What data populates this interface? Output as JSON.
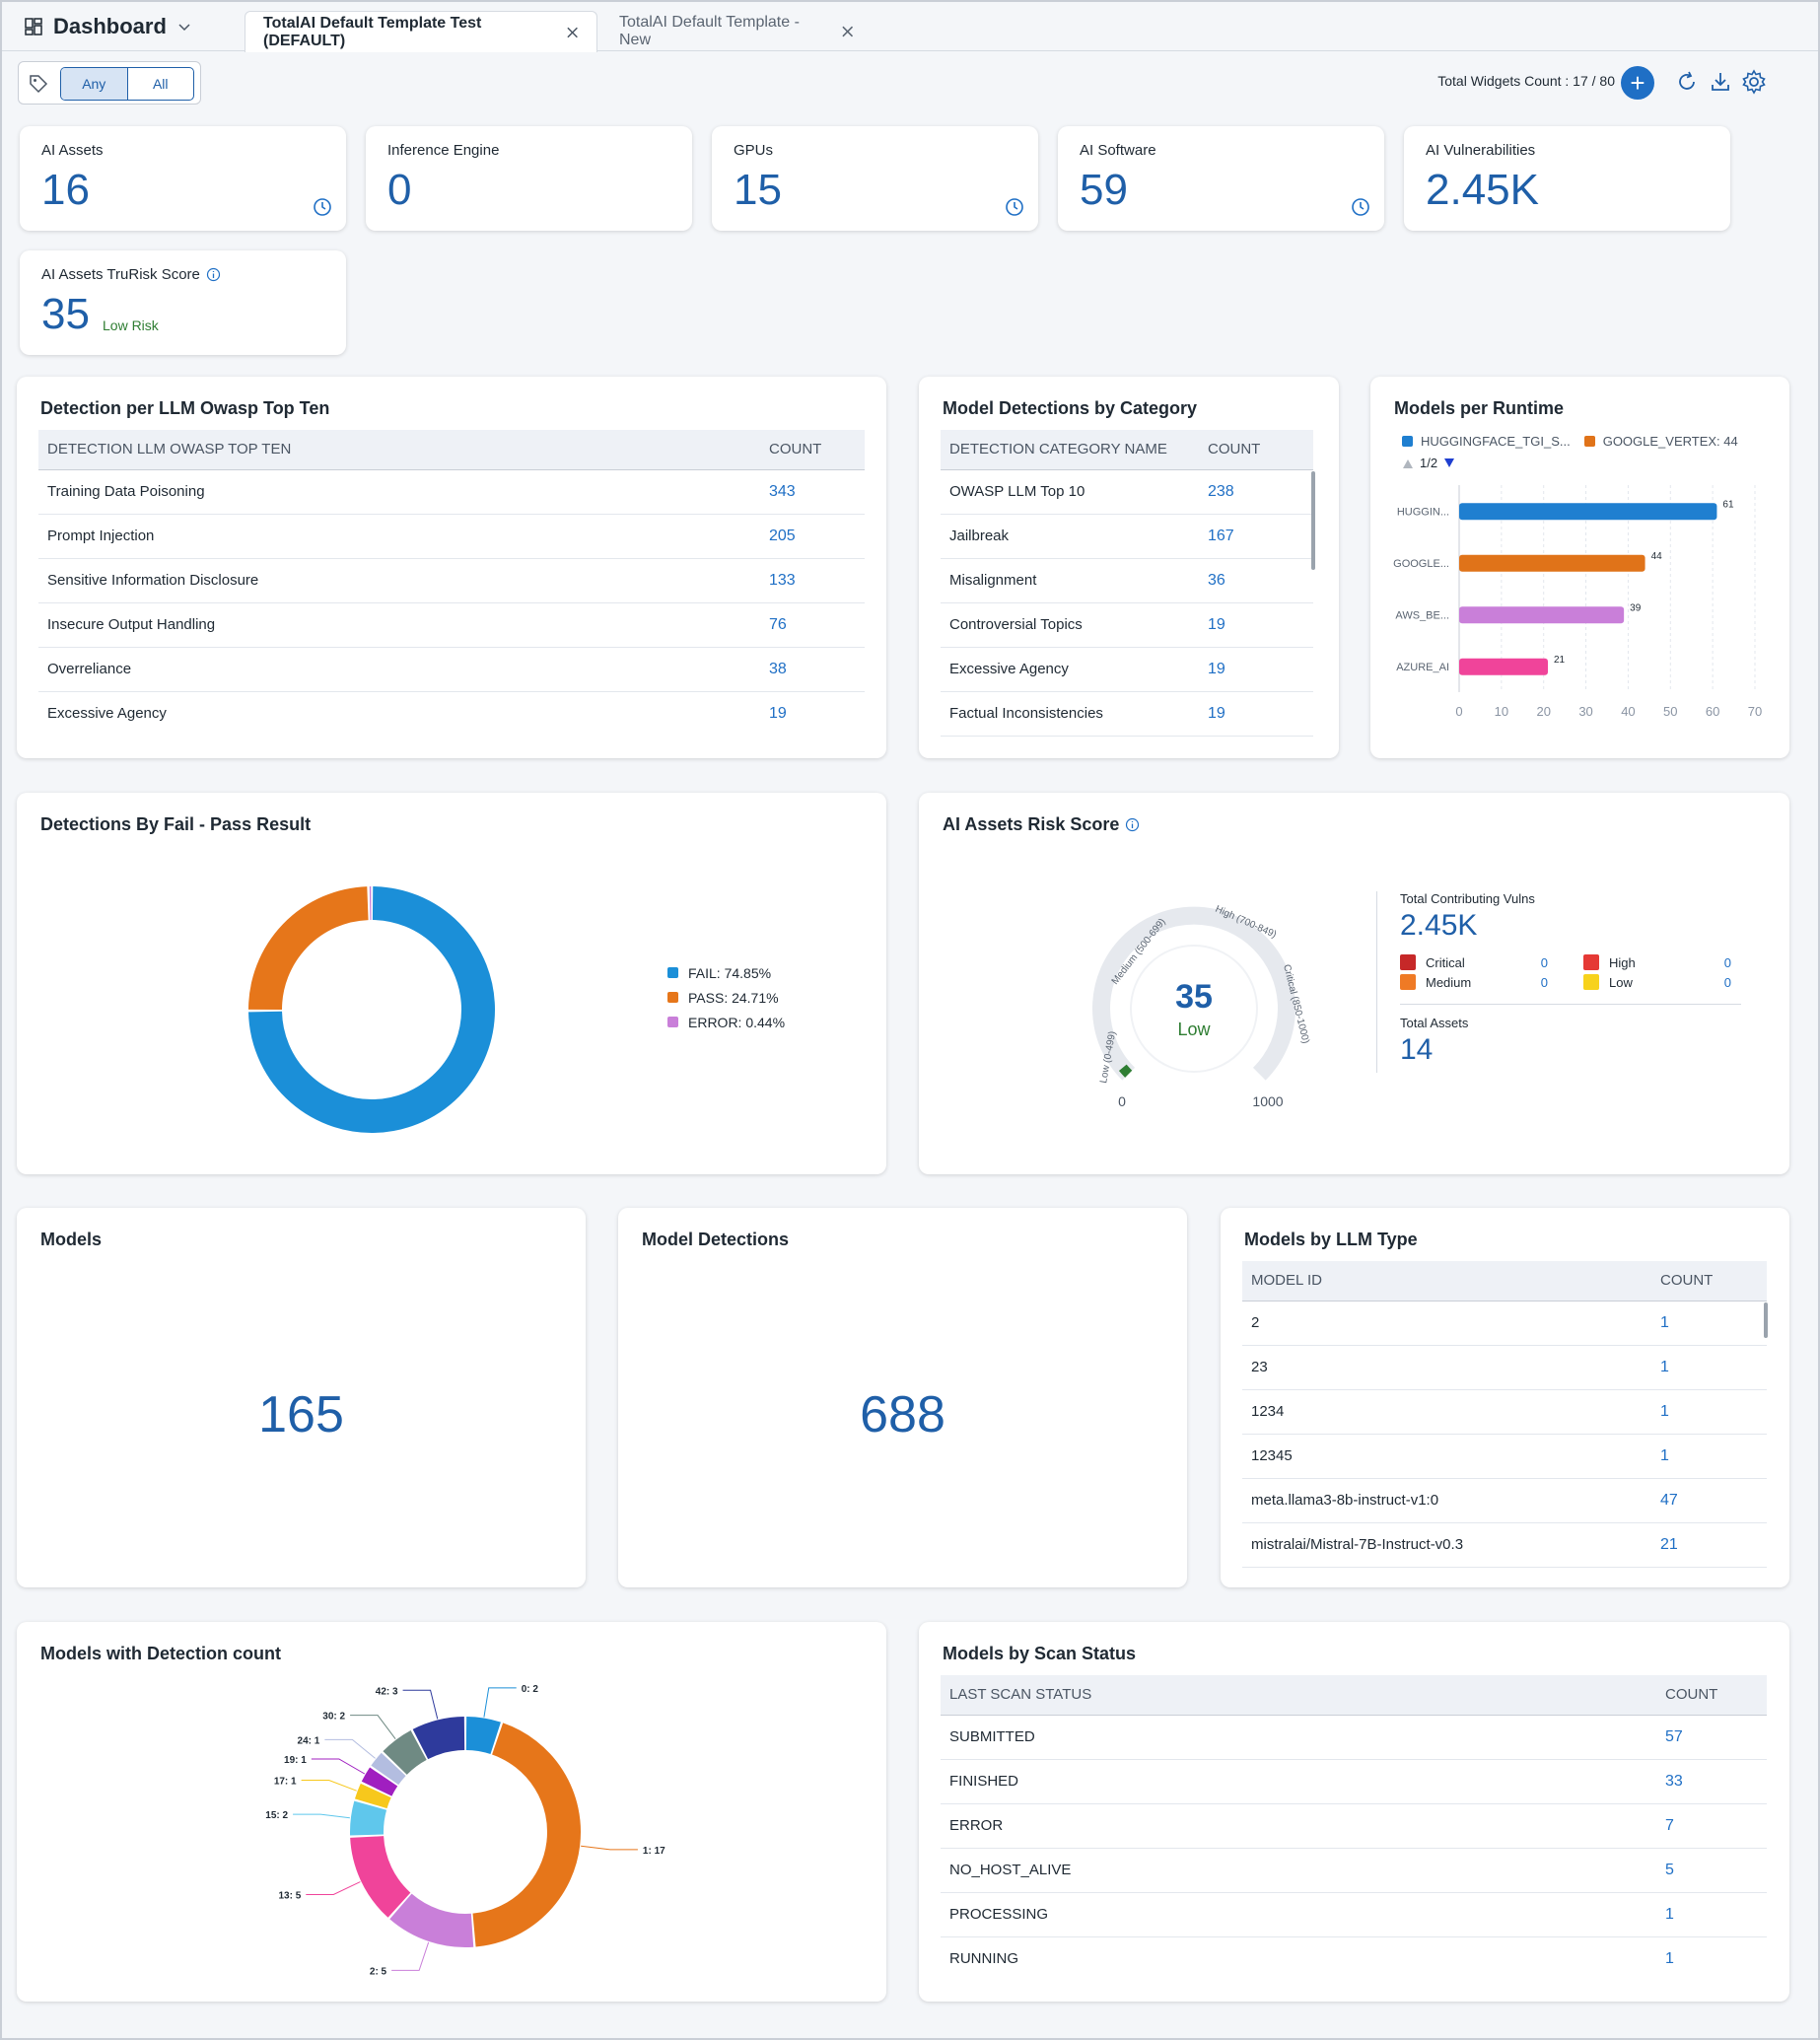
{
  "header": {
    "title": "Dashboard",
    "tabs": [
      {
        "label": "TotalAI Default Template Test (DEFAULT)"
      },
      {
        "label": "TotalAI Default Template - New"
      }
    ]
  },
  "toolbar": {
    "filter_any": "Any",
    "filter_all": "All",
    "widgets_count": "Total Widgets Count : 17 / 80"
  },
  "stats": [
    {
      "label": "AI Assets",
      "value": "16"
    },
    {
      "label": "Inference Engine",
      "value": "0"
    },
    {
      "label": "GPUs",
      "value": "15"
    },
    {
      "label": "AI Software",
      "value": "59"
    },
    {
      "label": "AI Vulnerabilities",
      "value": "2.45K"
    }
  ],
  "trurisk": {
    "label": "AI Assets TruRisk Score",
    "value": "35",
    "risk": "Low Risk"
  },
  "owasp": {
    "title": "Detection per LLM Owasp Top Ten",
    "col1": "DETECTION LLM OWASP TOP TEN",
    "col2": "COUNT",
    "rows": [
      {
        "name": "Training Data Poisoning",
        "count": "343"
      },
      {
        "name": "Prompt Injection",
        "count": "205"
      },
      {
        "name": "Sensitive Information Disclosure",
        "count": "133"
      },
      {
        "name": "Insecure Output Handling",
        "count": "76"
      },
      {
        "name": "Overreliance",
        "count": "38"
      },
      {
        "name": "Excessive Agency",
        "count": "19"
      }
    ]
  },
  "category": {
    "title": "Model Detections by Category",
    "col1": "DETECTION CATEGORY NAME",
    "col2": "COUNT",
    "rows": [
      {
        "name": "OWASP LLM Top 10",
        "count": "238"
      },
      {
        "name": "Jailbreak",
        "count": "167"
      },
      {
        "name": "Misalignment",
        "count": "36"
      },
      {
        "name": "Controversial Topics",
        "count": "19"
      },
      {
        "name": "Excessive Agency",
        "count": "19"
      },
      {
        "name": "Factual Inconsistencies",
        "count": "19"
      }
    ]
  },
  "runtime": {
    "title": "Models per Runtime",
    "legend": [
      {
        "name": "HUGGINGFACE_TGI_S...",
        "color": "#1f7fd0"
      },
      {
        "name": "GOOGLE_VERTEX: 44",
        "color": "#e07319"
      }
    ],
    "pager": "1/2"
  },
  "runtime_chart": {
    "type": "bar",
    "orientation": "horizontal",
    "categories": [
      "HUGGIN...",
      "GOOGLE...",
      "AWS_BE...",
      "AZURE_AI"
    ],
    "values": [
      61,
      44,
      39,
      21
    ],
    "colors": [
      "#1f7fd0",
      "#e07319",
      "#c97fd9",
      "#f0449a"
    ],
    "xticks": [
      "0",
      "10",
      "20",
      "30",
      "40",
      "50",
      "60",
      "70"
    ],
    "xlim": [
      0,
      70
    ]
  },
  "failpass": {
    "title": "Detections By Fail - Pass Result",
    "legend": [
      {
        "name": "FAIL: 74.85%",
        "color": "#1b8fd8"
      },
      {
        "name": "PASS: 24.71%",
        "color": "#e6761a"
      },
      {
        "name": "ERROR: 0.44%",
        "color": "#c97fd9"
      }
    ]
  },
  "failpass_chart": {
    "type": "pie",
    "labels": [
      "FAIL",
      "PASS",
      "ERROR"
    ],
    "values": [
      74.85,
      24.71,
      0.44
    ]
  },
  "riskscore": {
    "title": "AI Assets Risk Score",
    "score": "35",
    "level": "Low",
    "min": "0",
    "max": "1000",
    "band_low": "Low (0-499)",
    "band_medium": "Medium (500-699)",
    "band_high": "High (700-849)",
    "band_critical": "Critical (850-1000)",
    "vulns_label": "Total Contributing Vulns",
    "vulns_value": "2.45K",
    "critical_label": "Critical",
    "critical_value": "0",
    "critical_color": "#c62828",
    "high_label": "High",
    "high_value": "0",
    "high_color": "#e53935",
    "medium_label": "Medium",
    "medium_value": "0",
    "medium_color": "#ef7a25",
    "low_label": "Low",
    "low_value": "0",
    "low_color": "#f7d21c",
    "assets_label": "Total Assets",
    "assets_value": "14"
  },
  "models": {
    "title": "Models",
    "value": "165"
  },
  "detections": {
    "title": "Model Detections",
    "value": "688"
  },
  "llmtype": {
    "title": "Models by LLM Type",
    "col1": "MODEL ID",
    "col2": "COUNT",
    "rows": [
      {
        "name": "2",
        "count": "1"
      },
      {
        "name": "23",
        "count": "1"
      },
      {
        "name": "1234",
        "count": "1"
      },
      {
        "name": "12345",
        "count": "1"
      },
      {
        "name": "meta.llama3-8b-instruct-v1:0",
        "count": "47"
      },
      {
        "name": "mistralai/Mistral-7B-Instruct-v0.3",
        "count": "21"
      }
    ]
  },
  "detcount": {
    "title": "Models with Detection count"
  },
  "detcount_chart": {
    "type": "pie",
    "labels": [
      "0: 2",
      "1: 17",
      "2: 5",
      "13: 5",
      "15: 2",
      "17: 1",
      "19: 1",
      "24: 1",
      "30: 2",
      "42: 3"
    ],
    "values": [
      2,
      17,
      5,
      5,
      2,
      1,
      1,
      1,
      2,
      3
    ],
    "colors": [
      "#1b8fd8",
      "#e6761a",
      "#c97fd9",
      "#f0449a",
      "#5fc7ec",
      "#f7c81c",
      "#a01fc0",
      "#b3bde0",
      "#6f8a83",
      "#2e3a9c"
    ]
  },
  "scan": {
    "title": "Models by Scan Status",
    "col1": "LAST SCAN STATUS",
    "col2": "COUNT",
    "rows": [
      {
        "name": "SUBMITTED",
        "count": "57"
      },
      {
        "name": "FINISHED",
        "count": "33"
      },
      {
        "name": "ERROR",
        "count": "7"
      },
      {
        "name": "NO_HOST_ALIVE",
        "count": "5"
      },
      {
        "name": "PROCESSING",
        "count": "1"
      },
      {
        "name": "RUNNING",
        "count": "1"
      }
    ]
  }
}
